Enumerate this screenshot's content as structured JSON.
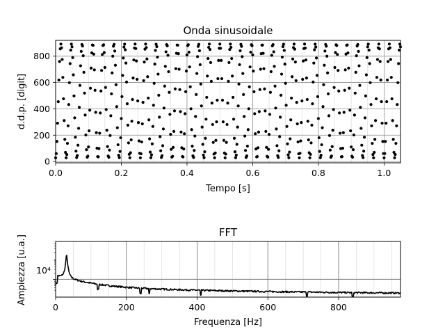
{
  "chart_data": [
    {
      "type": "scatter",
      "title": "Onda sinusoidale",
      "xlabel": "Tempo [s]",
      "ylabel": "d.d.p. [digit]",
      "xlim": [
        0.0,
        1.05
      ],
      "ylim": [
        -10,
        920
      ],
      "xticks": [
        "0.0",
        "0.2",
        "0.4",
        "0.6",
        "0.8",
        "1.0"
      ],
      "yticks": [
        "0",
        "200",
        "400",
        "600",
        "800"
      ],
      "grid": true,
      "marker_color": "#000000",
      "signal": {
        "frequency_hz": 31,
        "offset": 460,
        "amplitude": 432,
        "sample_period_s": 0.002,
        "duration_s": 1.05
      }
    },
    {
      "type": "line",
      "title": "FFT",
      "xlabel": "Frequenza [Hz]",
      "ylabel": "Ampiezza [u.a.]",
      "xlim": [
        0,
        975
      ],
      "yscale": "log",
      "ylim": [
        1400,
        650000
      ],
      "xticks": [
        "0",
        "200",
        "400",
        "600",
        "800"
      ],
      "ytick_label": "10⁴",
      "grid": true,
      "line_color": "#000000",
      "spectrum": {
        "peak_frequency_hz": 31,
        "peak_amplitude": 130000,
        "notable_dips_hz": [
          120,
          240,
          265,
          410,
          710,
          840
        ]
      }
    }
  ]
}
